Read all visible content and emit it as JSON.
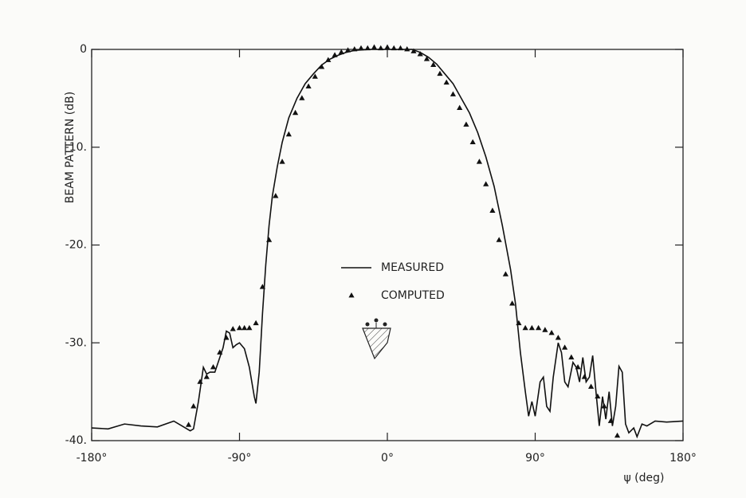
{
  "chart_data": {
    "type": "line",
    "y_label": "BEAM PATTERN (dB)",
    "x_label": "ψ (deg)",
    "xlim": [
      -180,
      180
    ],
    "ylim": [
      -40,
      0
    ],
    "xticks": [
      {
        "value": -180,
        "label": "-180°"
      },
      {
        "value": -90,
        "label": "-90°"
      },
      {
        "value": 0,
        "label": "0°"
      },
      {
        "value": 90,
        "label": "90°"
      },
      {
        "value": 180,
        "label": "180°"
      }
    ],
    "yticks": [
      0,
      {
        "value": -10,
        "label": "-10."
      },
      {
        "value": -20,
        "label": "-20."
      },
      {
        "value": -30,
        "label": "-30."
      },
      {
        "value": -40,
        "label": "-40."
      }
    ],
    "grid": false,
    "legend": "center",
    "series": [
      {
        "name": "MEASURED",
        "color": "#111111",
        "mode": "line",
        "x": [
          -180,
          -170,
          -160,
          -150,
          -140,
          -130,
          -125,
          -120,
          -118,
          -115,
          -112,
          -110,
          -108,
          -105,
          -102,
          -100,
          -98,
          -96,
          -94,
          -92,
          -90,
          -87,
          -84,
          -81,
          -80,
          -78,
          -76,
          -74,
          -72,
          -70,
          -67,
          -64,
          -60,
          -55,
          -50,
          -45,
          -40,
          -35,
          -30,
          -25,
          -20,
          -10,
          0,
          10,
          15,
          20,
          25,
          30,
          35,
          40,
          45,
          50,
          55,
          60,
          65,
          70,
          75,
          78,
          81,
          84,
          86,
          88,
          90,
          93,
          95,
          97,
          99,
          101,
          104,
          106,
          108,
          110,
          113,
          115,
          117,
          119,
          121,
          123,
          125,
          127,
          129,
          131,
          133,
          135,
          137,
          139,
          141,
          143,
          145,
          147,
          150,
          152,
          155,
          158,
          163,
          170,
          180
        ],
        "values": [
          -38.7,
          -38.8,
          -38.3,
          -38.5,
          -38.6,
          -38,
          -38.5,
          -39,
          -38.8,
          -36,
          -32.5,
          -33.2,
          -33,
          -33,
          -31.5,
          -30.5,
          -28.8,
          -29,
          -30.5,
          -30.2,
          -30,
          -30.6,
          -32.5,
          -35.5,
          -36.2,
          -33,
          -27,
          -22,
          -18,
          -15,
          -12,
          -9.5,
          -7,
          -5,
          -3.5,
          -2.5,
          -1.6,
          -1,
          -0.6,
          -0.3,
          -0.1,
          0,
          0,
          0,
          0,
          -0.3,
          -0.8,
          -1.5,
          -2.5,
          -3.5,
          -5,
          -6.5,
          -8.5,
          -11,
          -14,
          -18,
          -22.5,
          -26,
          -31,
          -35,
          -37.5,
          -36,
          -37.5,
          -34,
          -33.5,
          -36.5,
          -37,
          -33.5,
          -30,
          -31,
          -34,
          -34.5,
          -32,
          -32.5,
          -34,
          -31.5,
          -34,
          -33.5,
          -31.3,
          -35,
          -38.5,
          -35.5,
          -37.8,
          -35,
          -38.5,
          -36.5,
          -32.4,
          -33,
          -38.3,
          -39.2,
          -38.7,
          -39.6,
          -38.3,
          -38.5,
          -38,
          -38.1,
          -38
        ]
      },
      {
        "name": "COMPUTED",
        "color": "#111111",
        "mode": "markers",
        "marker": "triangle",
        "x": [
          -121,
          -118,
          -114,
          -110,
          -106,
          -102,
          -98,
          -94,
          -90,
          -87,
          -84,
          -80,
          -76,
          -72,
          -68,
          -64,
          -60,
          -56,
          -52,
          -48,
          -44,
          -40,
          -36,
          -32,
          -28,
          -24,
          -20,
          -16,
          -12,
          -8,
          -4,
          0,
          4,
          8,
          12,
          16,
          20,
          24,
          28,
          32,
          36,
          40,
          44,
          48,
          52,
          56,
          60,
          64,
          68,
          72,
          76,
          80,
          84,
          88,
          92,
          96,
          100,
          104,
          108,
          112,
          116,
          120,
          124,
          128,
          132,
          136,
          140
        ],
        "values": [
          -38.4,
          -36.5,
          -34,
          -33.5,
          -32.5,
          -31,
          -29.5,
          -28.6,
          -28.5,
          -28.5,
          -28.5,
          -28,
          -24.3,
          -19.5,
          -15,
          -11.5,
          -8.7,
          -6.5,
          -5,
          -3.8,
          -2.8,
          -1.8,
          -1.1,
          -0.6,
          -0.3,
          -0.1,
          0,
          0.1,
          0.1,
          0.2,
          0.1,
          0.2,
          0.1,
          0.1,
          0,
          -0.2,
          -0.5,
          -1,
          -1.6,
          -2.5,
          -3.4,
          -4.6,
          -6,
          -7.7,
          -9.5,
          -11.5,
          -13.8,
          -16.5,
          -19.5,
          -23,
          -26,
          -28,
          -28.5,
          -28.5,
          -28.5,
          -28.7,
          -29,
          -29.5,
          -30.5,
          -31.5,
          -32.5,
          -33.5,
          -34.5,
          -35.5,
          -36.5,
          -38,
          -39.5
        ]
      }
    ]
  }
}
